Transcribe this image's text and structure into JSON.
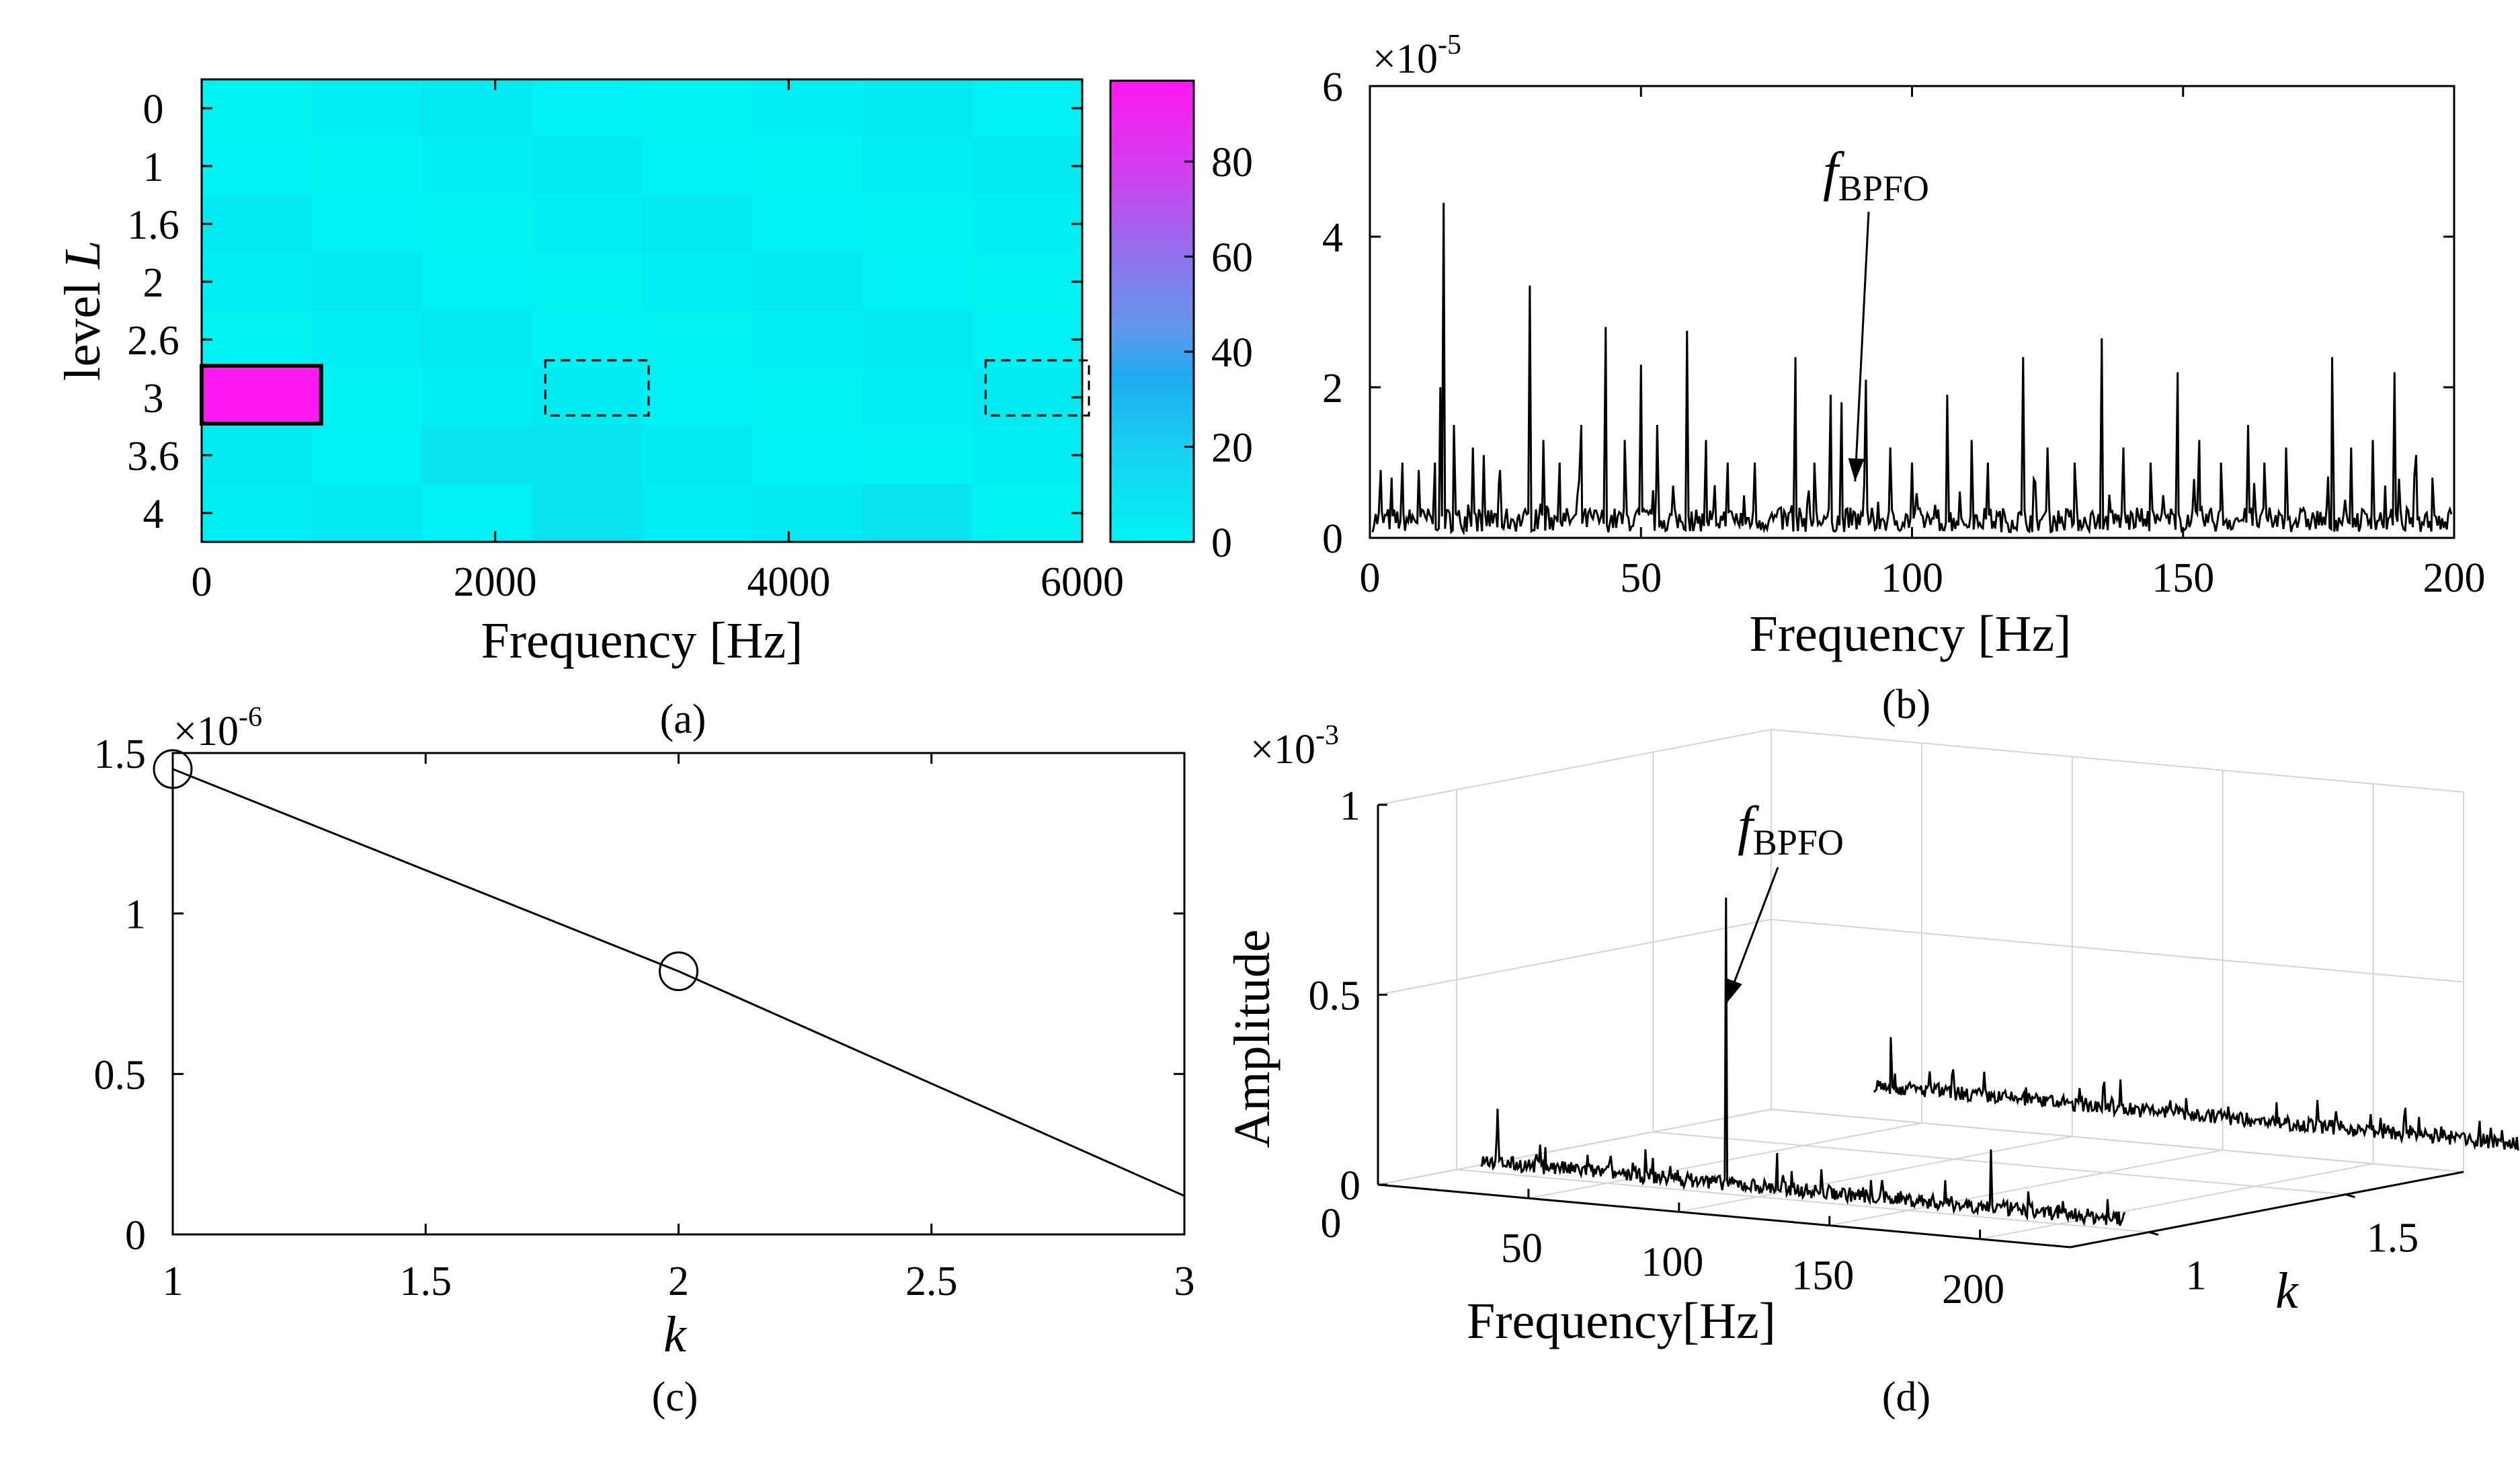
{
  "figure": {
    "captions": [
      "(a)",
      "(b)",
      "(c)",
      "(d)"
    ],
    "palette": {
      "low": "#00f5f5",
      "mid": "#2aa9ec",
      "high": "#ff18f2",
      "ink": "#000000",
      "grid": "#d4d4d4"
    }
  },
  "chart_data": [
    {
      "panel": "(a)",
      "type": "heatmap",
      "xlabel": "Frequency [Hz]",
      "ylabel_main": "level ",
      "ylabel_italic": "L",
      "xlim": [
        0,
        6000
      ],
      "x_ticks": [
        0,
        2000,
        4000,
        6000
      ],
      "x_tick_labels": [
        "0",
        "2000",
        "4000",
        "6000"
      ],
      "y_tick_labels": [
        "0",
        "1",
        "1.6",
        "2",
        "2.6",
        "3",
        "3.6",
        "4"
      ],
      "colorbar": {
        "range": [
          0,
          97
        ],
        "ticks": [
          0,
          20,
          40,
          60,
          80
        ],
        "tick_labels": [
          "0",
          "20",
          "40",
          "60",
          "80"
        ]
      },
      "max_cell": {
        "level": "3",
        "freq_range": [
          0,
          750
        ],
        "value": 97
      },
      "dashed_boxes": [
        {
          "level": "3",
          "freq_range": [
            2250,
            3000
          ]
        },
        {
          "level": "3",
          "freq_range": [
            5250,
            6000
          ]
        }
      ],
      "background_value": 3
    },
    {
      "panel": "(b)",
      "type": "line",
      "xlabel": "Frequency [Hz]",
      "ylabel": "",
      "xlim": [
        0,
        200
      ],
      "ylim": [
        0,
        6
      ],
      "y_scale_exponent": "-5",
      "y_scale_base": "×10",
      "x_ticks": [
        0,
        50,
        100,
        150,
        200
      ],
      "x_tick_labels": [
        "0",
        "50",
        "100",
        "150",
        "200"
      ],
      "y_ticks": [
        0,
        2,
        4,
        6
      ],
      "y_tick_labels": [
        "0",
        "2",
        "4",
        "6"
      ],
      "noise_floor": 0.3,
      "peaks": [
        [
          2,
          0.9
        ],
        [
          4,
          0.8
        ],
        [
          6,
          1.0
        ],
        [
          9,
          0.9
        ],
        [
          12,
          1.0
        ],
        [
          13,
          2.0
        ],
        [
          13.6,
          4.45
        ],
        [
          15.5,
          1.5
        ],
        [
          19,
          1.2
        ],
        [
          21,
          1.1
        ],
        [
          24,
          0.9
        ],
        [
          29.5,
          3.35
        ],
        [
          32,
          1.3
        ],
        [
          35,
          1.0
        ],
        [
          39,
          1.5
        ],
        [
          43.5,
          2.8
        ],
        [
          47,
          1.3
        ],
        [
          50,
          2.3
        ],
        [
          53,
          1.5
        ],
        [
          58.5,
          2.75
        ],
        [
          62,
          1.3
        ],
        [
          66,
          1.0
        ],
        [
          71,
          1.0
        ],
        [
          78.5,
          2.4
        ],
        [
          82,
          1.0
        ],
        [
          85,
          1.9
        ],
        [
          87,
          1.8
        ],
        [
          91.5,
          2.1
        ],
        [
          96,
          1.2
        ],
        [
          100,
          1.0
        ],
        [
          106.5,
          1.9
        ],
        [
          111,
          1.3
        ],
        [
          114,
          1.0
        ],
        [
          120.5,
          2.4
        ],
        [
          125,
          1.2
        ],
        [
          130,
          1.0
        ],
        [
          135,
          2.65
        ],
        [
          139,
          1.2
        ],
        [
          144,
          1.0
        ],
        [
          149,
          2.2
        ],
        [
          153,
          1.3
        ],
        [
          157,
          1.0
        ],
        [
          162,
          1.5
        ],
        [
          165,
          1.0
        ],
        [
          169,
          1.2
        ],
        [
          177.5,
          2.4
        ],
        [
          181,
          1.2
        ],
        [
          185,
          1.3
        ],
        [
          189,
          2.2
        ],
        [
          193,
          1.1
        ],
        [
          196,
          0.8
        ]
      ],
      "annotation": {
        "text": "f",
        "subscript": "BPFO",
        "points_to": [
          89.5,
          0.75
        ]
      }
    },
    {
      "panel": "(c)",
      "type": "line",
      "xlabel": "k",
      "ylabel": "",
      "xlim": [
        1,
        3
      ],
      "ylim": [
        0,
        1.5
      ],
      "y_scale_exponent": "-6",
      "y_scale_base": "×10",
      "x": [
        1,
        2,
        3
      ],
      "y": [
        1.45,
        0.82,
        0.12
      ],
      "markers": [
        [
          1,
          1.45
        ],
        [
          2,
          0.82
        ]
      ],
      "x_ticks": [
        1,
        1.5,
        2,
        2.5,
        3
      ],
      "x_tick_labels": [
        "1",
        "1.5",
        "2",
        "2.5",
        "3"
      ],
      "y_ticks": [
        0,
        0.5,
        1,
        1.5
      ],
      "y_tick_labels": [
        "0",
        "0.5",
        "1",
        "1.5"
      ]
    },
    {
      "panel": "(d)",
      "type": "line",
      "view": "3d-waterfall",
      "xlabel": "Frequency[Hz]",
      "ylabel": "k",
      "zlabel": "Amplitude",
      "z_scale_exponent": "-3",
      "z_scale_base": "×10",
      "xlim": [
        0,
        230
      ],
      "ylim": [
        0.8,
        1.8
      ],
      "zlim": [
        0,
        1
      ],
      "x_tick_labels": [
        "0",
        "50",
        "100",
        "150",
        "200"
      ],
      "y_tick_labels": [
        "1",
        "1.5"
      ],
      "z_tick_labels": [
        "0",
        "0.5",
        "1"
      ],
      "series": [
        {
          "name": "k = 1",
          "k": 1,
          "peaks": [
            [
              13.6,
              0.17
            ],
            [
              29.5,
              0.08
            ],
            [
              43.5,
              0.07
            ],
            [
              58.5,
              0.06
            ],
            [
              71,
              0.06
            ],
            [
              89.5,
              0.78
            ],
            [
              106.5,
              0.12
            ],
            [
              135,
              0.05
            ],
            [
              177.5,
              0.18
            ],
            [
              200,
              0.05
            ]
          ]
        },
        {
          "name": "k = 2",
          "k": 2,
          "peaks": [
            [
              13.6,
              0.16
            ],
            [
              29.5,
              0.05
            ],
            [
              58.5,
              0.06
            ],
            [
              106.5,
              0.06
            ],
            [
              177.5,
              0.05
            ]
          ]
        }
      ],
      "annotation": {
        "text": "f",
        "subscript": "BPFO",
        "points_to": [
          89.5,
          1,
          0.5
        ]
      }
    }
  ]
}
